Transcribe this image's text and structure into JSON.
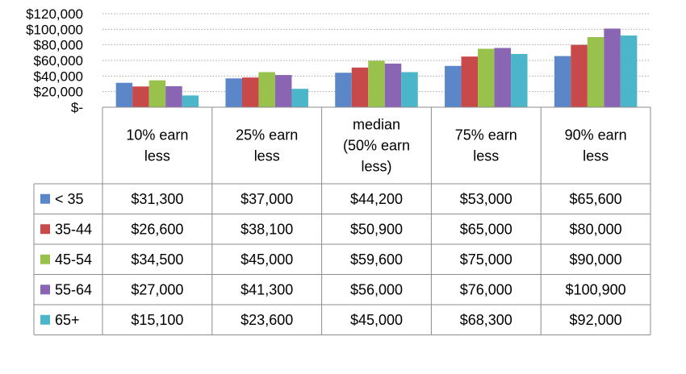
{
  "chart_data": {
    "type": "bar",
    "categories": [
      [
        "10% earn",
        "less"
      ],
      [
        "25% earn",
        "less"
      ],
      [
        "median",
        "(50% earn",
        "less)"
      ],
      [
        "75% earn",
        "less"
      ],
      [
        "90% earn",
        "less"
      ]
    ],
    "series": [
      {
        "name": "< 35",
        "color": "#5b87c9",
        "values": [
          31300,
          37000,
          44200,
          53000,
          65600
        ],
        "labels": [
          "$31,300",
          "$37,000",
          "$44,200",
          "$53,000",
          "$65,600"
        ]
      },
      {
        "name": "35-44",
        "color": "#c8494a",
        "values": [
          26600,
          38100,
          50900,
          65000,
          80000
        ],
        "labels": [
          "$26,600",
          "$38,100",
          "$50,900",
          "$65,000",
          "$80,000"
        ]
      },
      {
        "name": "45-54",
        "color": "#99c24d",
        "values": [
          34500,
          45000,
          59600,
          75000,
          90000
        ],
        "labels": [
          "$34,500",
          "$45,000",
          "$59,600",
          "$75,000",
          "$90,000"
        ]
      },
      {
        "name": "55-64",
        "color": "#8a65b3",
        "values": [
          27000,
          41300,
          56000,
          76000,
          100900
        ],
        "labels": [
          "$27,000",
          "$41,300",
          "$56,000",
          "$76,000",
          "$100,900"
        ]
      },
      {
        "name": "65+",
        "color": "#4bb6c9",
        "values": [
          15100,
          23600,
          45000,
          68300,
          92000
        ],
        "labels": [
          "$15,100",
          "$23,600",
          "$45,000",
          "$68,300",
          "$92,000"
        ]
      }
    ],
    "yticks": [
      0,
      20000,
      40000,
      60000,
      80000,
      100000,
      120000
    ],
    "ytick_labels": [
      "$-",
      "$20,000",
      "$40,000",
      "$60,000",
      "$80,000",
      "$100,000",
      "$120,000"
    ],
    "ylim": [
      0,
      120000
    ],
    "grid": true,
    "grid_style": "dotted",
    "data_table": true,
    "legend_placement": "data table row headers"
  }
}
